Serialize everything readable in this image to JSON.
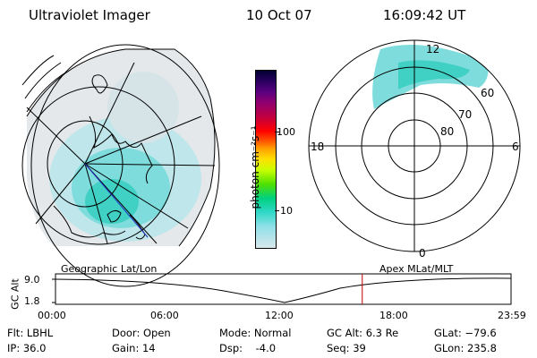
{
  "header": {
    "title": "Ultraviolet Imager",
    "date": "10 Oct 07",
    "time": "16:09:42 UT"
  },
  "colorbar": {
    "label": "photon cm⁻²s⁻¹",
    "ticks": [
      "100",
      "10"
    ],
    "colors": [
      "#000033",
      "#2a0060",
      "#5a0080",
      "#900070",
      "#c00040",
      "#ff0000",
      "#ff5a00",
      "#ffa000",
      "#ffe000",
      "#c8ff00",
      "#50e000",
      "#00d080",
      "#30d8c8",
      "#90e0e8",
      "#d8e8ec"
    ]
  },
  "polar_plot": {
    "mlt_labels": [
      "12",
      "18",
      "6",
      "0"
    ],
    "lat_labels": [
      "60",
      "70",
      "80"
    ]
  },
  "timeline": {
    "left_label": "Geographic Lat/Lon",
    "right_label": "Apex MLat/MLT",
    "axis_label": "GC Alt",
    "y_ticks": [
      "9.0",
      "1.8"
    ],
    "x_ticks": [
      "00:00",
      "06:00",
      "12:00",
      "18:00",
      "23:59"
    ],
    "current_time_fraction": 0.6734
  },
  "footer": {
    "flt": "Flt: LBHL",
    "ip": "IP: 36.0",
    "door": "Door: Open",
    "gain": "Gain: 14",
    "mode": "Mode: Normal",
    "dsp": "Dsp:    -4.0",
    "gc_alt": "GC Alt: 6.3 Re",
    "seq": "Seq: 39",
    "glat": "GLat: −79.6",
    "glon": "GLon: 235.8"
  }
}
